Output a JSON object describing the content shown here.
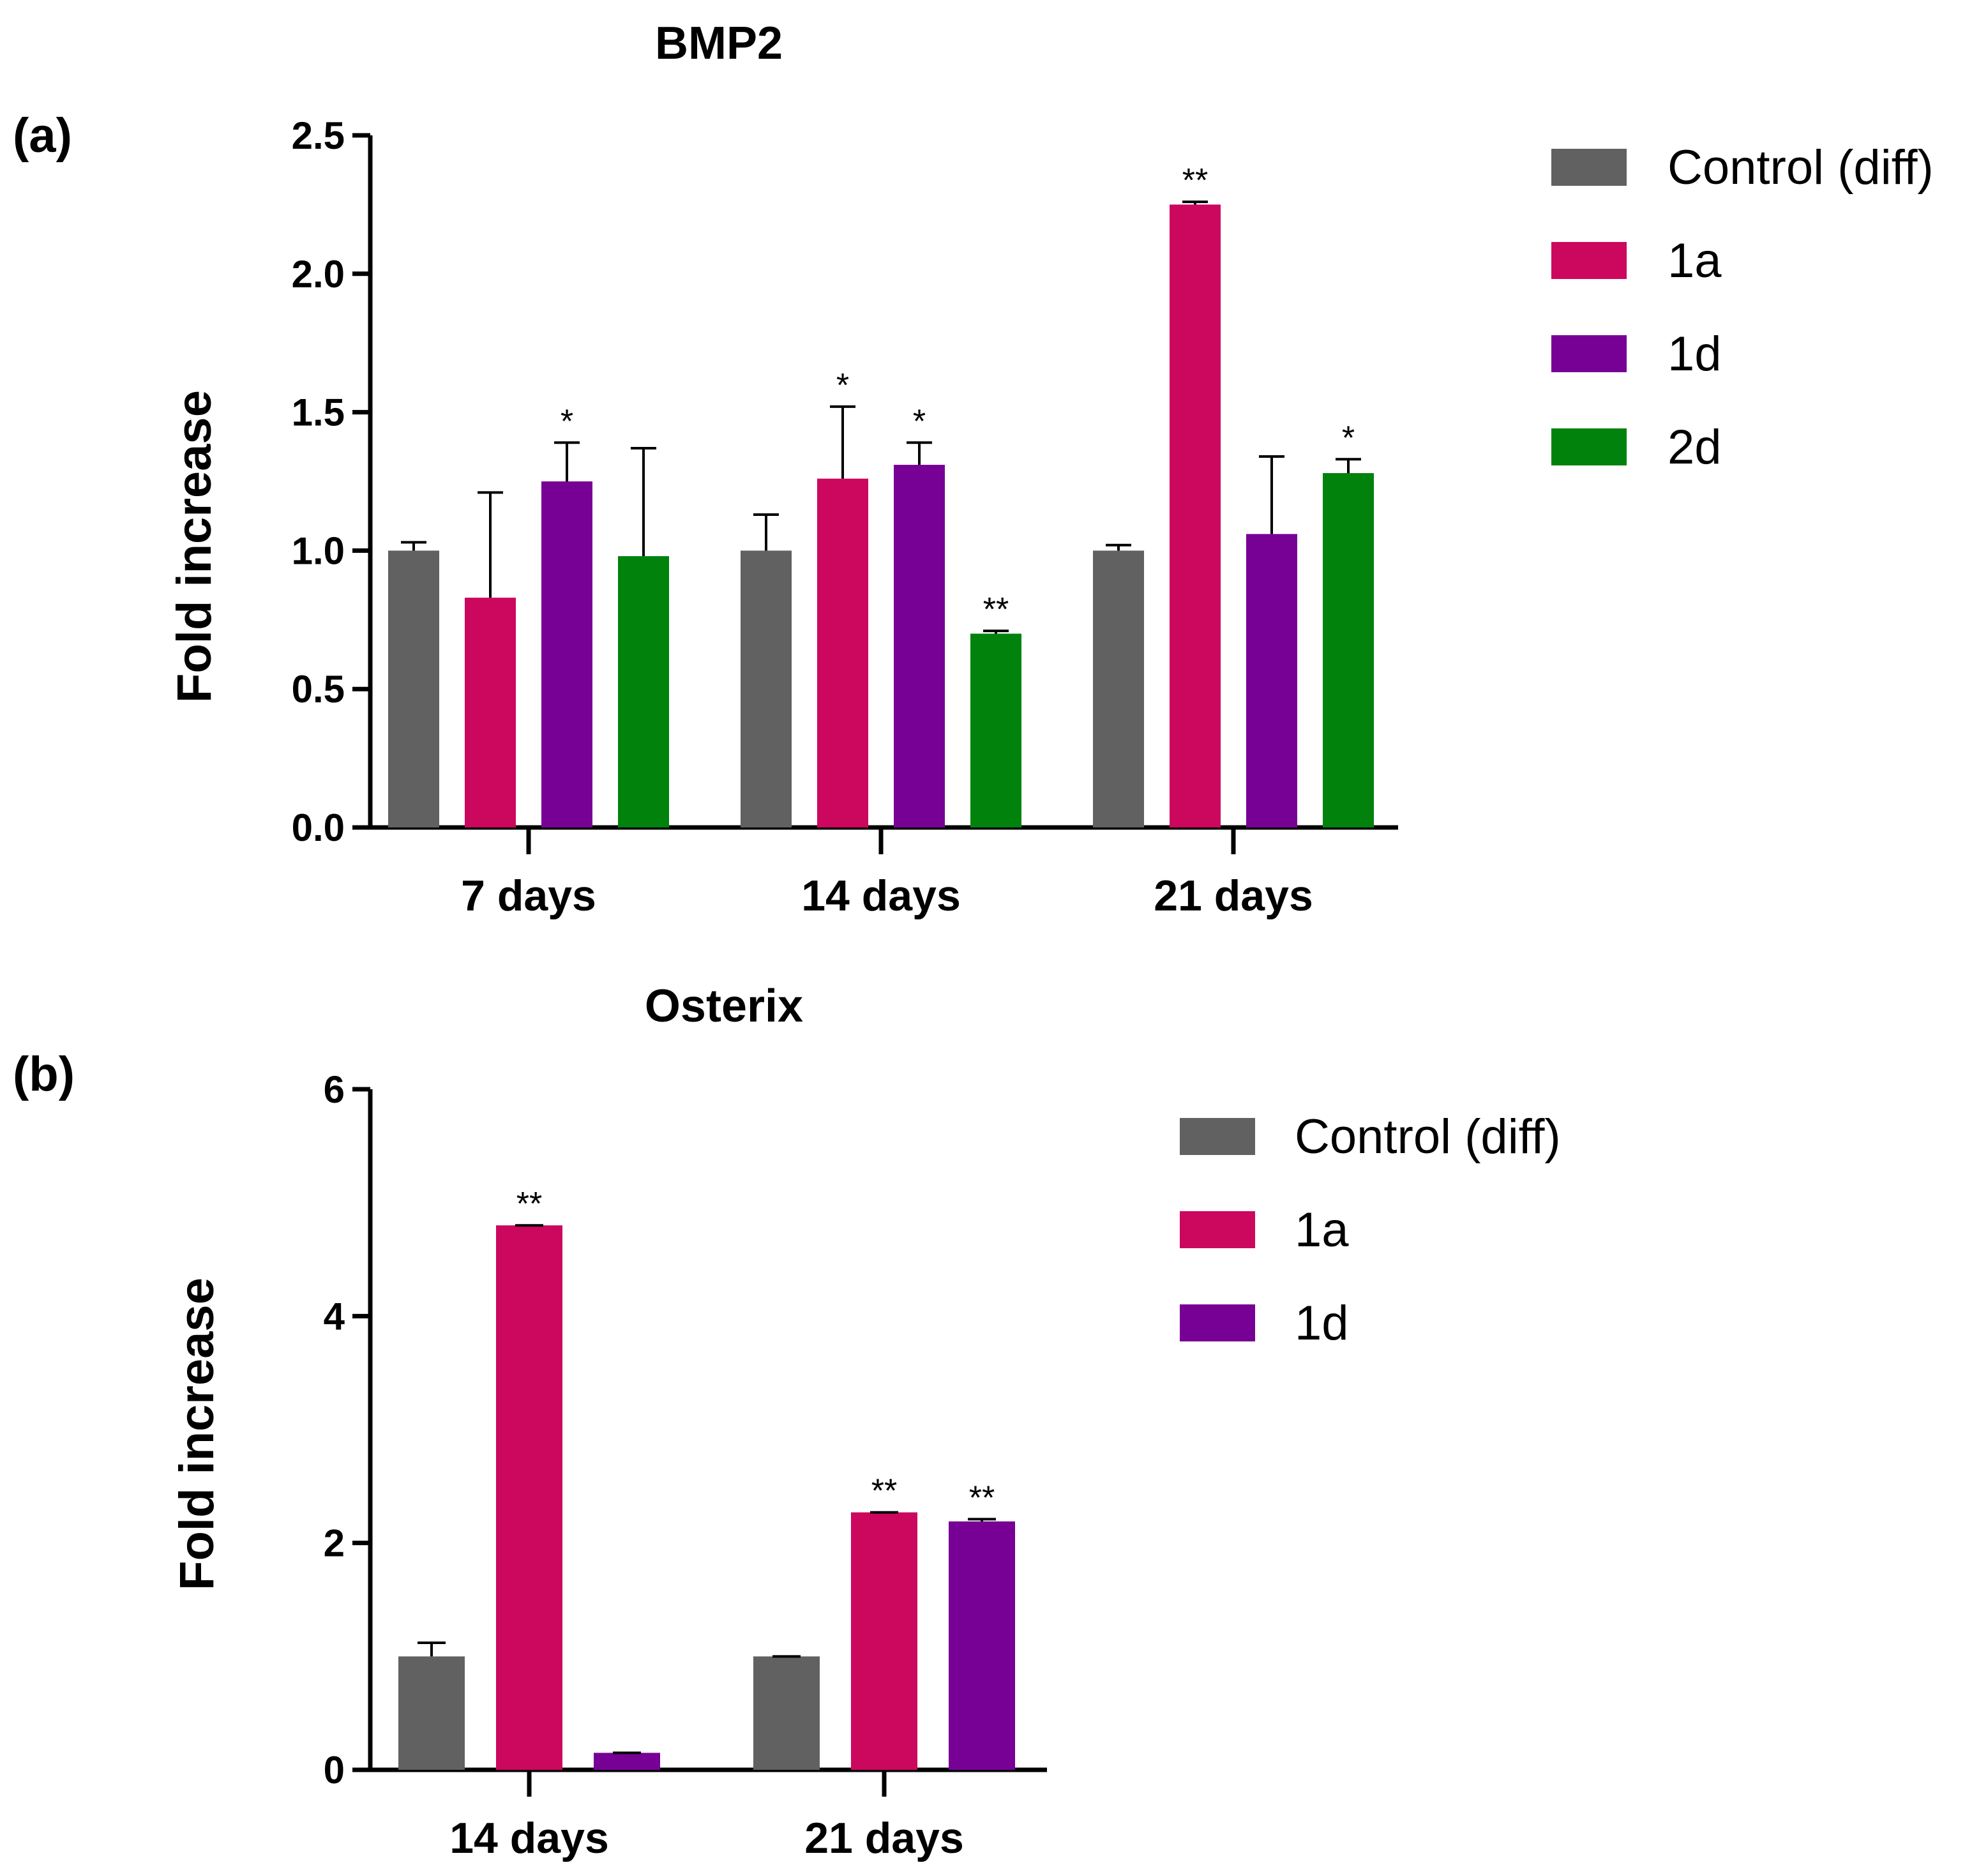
{
  "colors": {
    "Control (diff)": "#616161",
    "1a": "#cc075e",
    "1d": "#770195",
    "2d": "#01820c"
  },
  "chart_data": [
    {
      "type": "bar",
      "panel_label": "(a)",
      "title": "BMP2",
      "ylabel": "Fold increase",
      "xlabel": "",
      "ylim": [
        0,
        2.5
      ],
      "yticks": [
        "0.0",
        "0.5",
        "1.0",
        "1.5",
        "2.0",
        "2.5"
      ],
      "categories": [
        "7 days",
        "14 days",
        "21 days"
      ],
      "legend_position": "right",
      "grid": false,
      "series": [
        {
          "name": "Control (diff)",
          "values": [
            1.0,
            1.0,
            1.0
          ],
          "errors": [
            0.03,
            0.13,
            0.02
          ],
          "sig": [
            "",
            "",
            ""
          ]
        },
        {
          "name": "1a",
          "values": [
            0.83,
            1.26,
            2.25
          ],
          "errors": [
            0.38,
            0.26,
            0.01
          ],
          "sig": [
            "",
            "*",
            "**"
          ]
        },
        {
          "name": "1d",
          "values": [
            1.25,
            1.31,
            1.06
          ],
          "errors": [
            0.14,
            0.08,
            0.28
          ],
          "sig": [
            "*",
            "*",
            ""
          ]
        },
        {
          "name": "2d",
          "values": [
            0.98,
            0.7,
            1.28
          ],
          "errors": [
            0.39,
            0.01,
            0.05
          ],
          "sig": [
            "",
            "**",
            "*"
          ]
        }
      ]
    },
    {
      "type": "bar",
      "panel_label": "(b)",
      "title": "Osterix",
      "ylabel": "Fold increase",
      "xlabel": "",
      "ylim": [
        0,
        6
      ],
      "yticks": [
        "0",
        "2",
        "4",
        "6"
      ],
      "categories": [
        "14 days",
        "21 days"
      ],
      "legend_position": "right",
      "grid": false,
      "series": [
        {
          "name": "Control (diff)",
          "values": [
            1.0,
            1.0
          ],
          "errors": [
            0.12,
            0.0
          ],
          "sig": [
            "",
            ""
          ]
        },
        {
          "name": "1a",
          "values": [
            4.8,
            2.27
          ],
          "errors": [
            0.0,
            0.0
          ],
          "sig": [
            "**",
            "**"
          ]
        },
        {
          "name": "1d",
          "values": [
            0.15,
            2.19
          ],
          "errors": [
            0.0,
            0.02
          ],
          "sig": [
            "",
            "**"
          ]
        }
      ]
    }
  ]
}
